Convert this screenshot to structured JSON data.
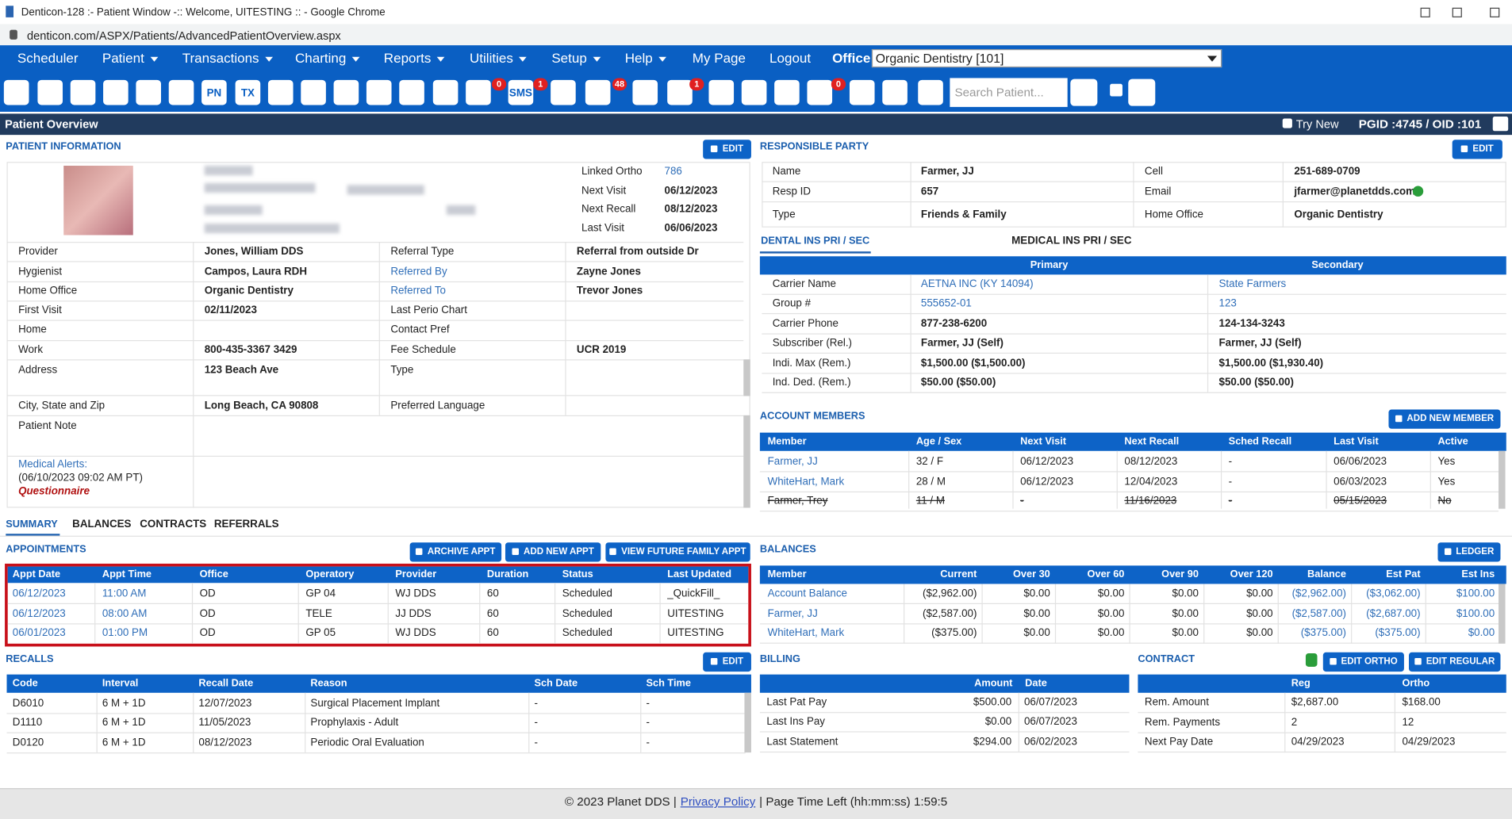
{
  "window": {
    "title": "Denticon-128 :- Patient Window -:: Welcome, UITESTING :: - Google Chrome",
    "url": "denticon.com/ASPX/Patients/AdvancedPatientOverview.aspx"
  },
  "menu": [
    {
      "label": "Scheduler",
      "dropdown": false
    },
    {
      "label": "Patient",
      "dropdown": true
    },
    {
      "label": "Transactions",
      "dropdown": true
    },
    {
      "label": "Charting",
      "dropdown": true
    },
    {
      "label": "Reports",
      "dropdown": true
    },
    {
      "label": "Utilities",
      "dropdown": true
    },
    {
      "label": "Setup",
      "dropdown": true
    },
    {
      "label": "Help",
      "dropdown": true
    },
    {
      "label": "My Page",
      "dropdown": false
    },
    {
      "label": "Logout",
      "dropdown": false
    }
  ],
  "office": {
    "label": "Office",
    "value": "Organic Dentistry [101]"
  },
  "toolbar": {
    "texts": [
      "PN",
      "TX",
      "SMS"
    ],
    "badges": [
      "0",
      "1",
      "48",
      "1",
      "0"
    ],
    "search_placeholder": "Search Patient..."
  },
  "header": {
    "title": "Patient Overview",
    "try_new": "Try New",
    "ids": "PGID :4745 / OID :101"
  },
  "patient_info": {
    "title": "PATIENT INFORMATION",
    "edit": "EDIT",
    "linked": [
      [
        "Linked Ortho",
        "786"
      ],
      [
        "Next Visit",
        "06/12/2023"
      ],
      [
        "Next Recall",
        "08/12/2023"
      ],
      [
        "Last Visit",
        "06/06/2023"
      ]
    ],
    "fields": [
      [
        "Provider",
        "Jones, William DDS",
        "Referral Type",
        "Referral from outside Dr"
      ],
      [
        "Hygienist",
        "Campos, Laura RDH",
        "Referred By",
        "Zayne Jones"
      ],
      [
        "Home Office",
        "Organic Dentistry",
        "Referred To",
        "Trevor Jones"
      ],
      [
        "First Visit",
        "02/11/2023",
        "Last Perio Chart",
        null
      ],
      [
        "Home",
        null,
        "Contact Pref",
        null
      ],
      [
        "Work",
        "800-435-3367 3429",
        "Fee Schedule",
        "UCR 2019"
      ],
      [
        "Address",
        "123 Beach Ave",
        "Type",
        null
      ],
      [
        "City, State and Zip",
        "Long Beach, CA 90808",
        "Preferred Language",
        null
      ],
      [
        "Patient Note",
        null
      ]
    ],
    "medical_alerts": {
      "label": "Medical Alerts:",
      "date": "(06/10/2023 09:02 AM PT)",
      "value": "Questionnaire"
    }
  },
  "responsible_party": {
    "title": "RESPONSIBLE PARTY",
    "edit": "EDIT",
    "rows": [
      [
        "Name",
        "Farmer, JJ",
        "Cell",
        "251-689-0709"
      ],
      [
        "Resp ID",
        "657",
        "Email",
        "jfarmer@planetdds.com"
      ],
      [
        "Type",
        "Friends & Family",
        "Home Office",
        "Organic Dentistry"
      ]
    ]
  },
  "insurance": {
    "tabs": [
      "DENTAL INS PRI / SEC",
      "MEDICAL INS PRI / SEC"
    ],
    "headers": [
      "Primary",
      "Secondary"
    ],
    "rows": [
      [
        "Carrier Name",
        "AETNA INC (KY 14094)",
        "State Farmers"
      ],
      [
        "Group #",
        "555652-01",
        "123"
      ],
      [
        "Carrier Phone",
        "877-238-6200",
        "124-134-3243"
      ],
      [
        "Subscriber (Rel.)",
        "Farmer, JJ (Self)",
        "Farmer, JJ (Self)"
      ],
      [
        "Indi. Max (Rem.)",
        "$1,500.00 ($1,500.00)",
        "$1,500.00 ($1,930.40)"
      ],
      [
        "Ind. Ded. (Rem.)",
        "$50.00 ($50.00)",
        "$50.00 ($50.00)"
      ]
    ]
  },
  "account_members": {
    "title": "ACCOUNT MEMBERS",
    "button": "ADD NEW MEMBER",
    "columns": [
      "Member",
      "Age / Sex",
      "Next Visit",
      "Next Recall",
      "Sched Recall",
      "Last Visit",
      "Active"
    ],
    "rows": [
      [
        "Farmer, JJ",
        "32 / F",
        "06/12/2023",
        "08/12/2023",
        "-",
        "06/06/2023",
        "Yes"
      ],
      [
        "WhiteHart, Mark",
        "28 / M",
        "06/12/2023",
        "12/04/2023",
        "-",
        "06/03/2023",
        "Yes"
      ],
      [
        "Farmer, Trey",
        "11 / M",
        "-",
        "11/16/2023",
        "-",
        "05/15/2023",
        "No"
      ]
    ],
    "strikethrough_rows": [
      2
    ]
  },
  "tabs": [
    "SUMMARY",
    "BALANCES",
    "CONTRACTS",
    "REFERRALS"
  ],
  "appointments": {
    "title": "APPOINTMENTS",
    "buttons": [
      "ARCHIVE APPT",
      "ADD NEW APPT",
      "VIEW FUTURE FAMILY APPT"
    ],
    "columns": [
      "Appt Date",
      "Appt Time",
      "Office",
      "Operatory",
      "Provider",
      "Duration",
      "Status",
      "Last Updated"
    ],
    "rows": [
      [
        "06/12/2023",
        "11:00 AM",
        "OD",
        "GP 04",
        "WJ DDS",
        "60",
        "Scheduled",
        "_QuickFill_"
      ],
      [
        "06/12/2023",
        "08:00 AM",
        "OD",
        "TELE",
        "JJ DDS",
        "60",
        "Scheduled",
        "UITESTING"
      ],
      [
        "06/01/2023",
        "01:00 PM",
        "OD",
        "GP 05",
        "WJ DDS",
        "60",
        "Scheduled",
        "UITESTING"
      ]
    ]
  },
  "balances": {
    "title": "BALANCES",
    "button": "LEDGER",
    "columns": [
      "Member",
      "Current",
      "Over 30",
      "Over 60",
      "Over 90",
      "Over 120",
      "Balance",
      "Est Pat",
      "Est Ins"
    ],
    "rows": [
      [
        "Account Balance",
        "($2,962.00)",
        "$0.00",
        "$0.00",
        "$0.00",
        "$0.00",
        "($2,962.00)",
        "($3,062.00)",
        "$100.00"
      ],
      [
        "Farmer, JJ",
        "($2,587.00)",
        "$0.00",
        "$0.00",
        "$0.00",
        "$0.00",
        "($2,587.00)",
        "($2,687.00)",
        "$100.00"
      ],
      [
        "WhiteHart, Mark",
        "($375.00)",
        "$0.00",
        "$0.00",
        "$0.00",
        "$0.00",
        "($375.00)",
        "($375.00)",
        "$0.00"
      ]
    ]
  },
  "recalls": {
    "title": "RECALLS",
    "edit": "EDIT",
    "columns": [
      "Code",
      "Interval",
      "Recall Date",
      "Reason",
      "Sch Date",
      "Sch Time"
    ],
    "rows": [
      [
        "D6010",
        "6 M + 1D",
        "12/07/2023",
        "Surgical Placement Implant",
        "-",
        "-"
      ],
      [
        "D1110",
        "6 M + 1D",
        "11/05/2023",
        "Prophylaxis - Adult",
        "-",
        "-"
      ],
      [
        "D0120",
        "6 M + 1D",
        "08/12/2023",
        "Periodic Oral Evaluation",
        "-",
        "-"
      ]
    ]
  },
  "billing": {
    "title": "BILLING",
    "columns": [
      "Amount",
      "Date"
    ],
    "rows": [
      [
        "Last Pat Pay",
        "$500.00",
        "06/07/2023"
      ],
      [
        "Last Ins Pay",
        "$0.00",
        "06/07/2023"
      ],
      [
        "Last Statement",
        "$294.00",
        "06/02/2023"
      ]
    ]
  },
  "contract": {
    "title": "CONTRACT",
    "buttons": [
      "EDIT ORTHO",
      "EDIT REGULAR"
    ],
    "columns": [
      "Reg",
      "Ortho"
    ],
    "rows": [
      [
        "Rem. Amount",
        "$2,687.00",
        "$168.00"
      ],
      [
        "Rem. Payments",
        "2",
        "12"
      ],
      [
        "Next Pay Date",
        "04/29/2023",
        "04/29/2023"
      ]
    ]
  },
  "footer": {
    "copyright": "© 2023 Planet DDS |",
    "link": "Privacy Policy",
    "time_left": "| Page Time Left (hh:mm:ss) 1:59:5"
  }
}
